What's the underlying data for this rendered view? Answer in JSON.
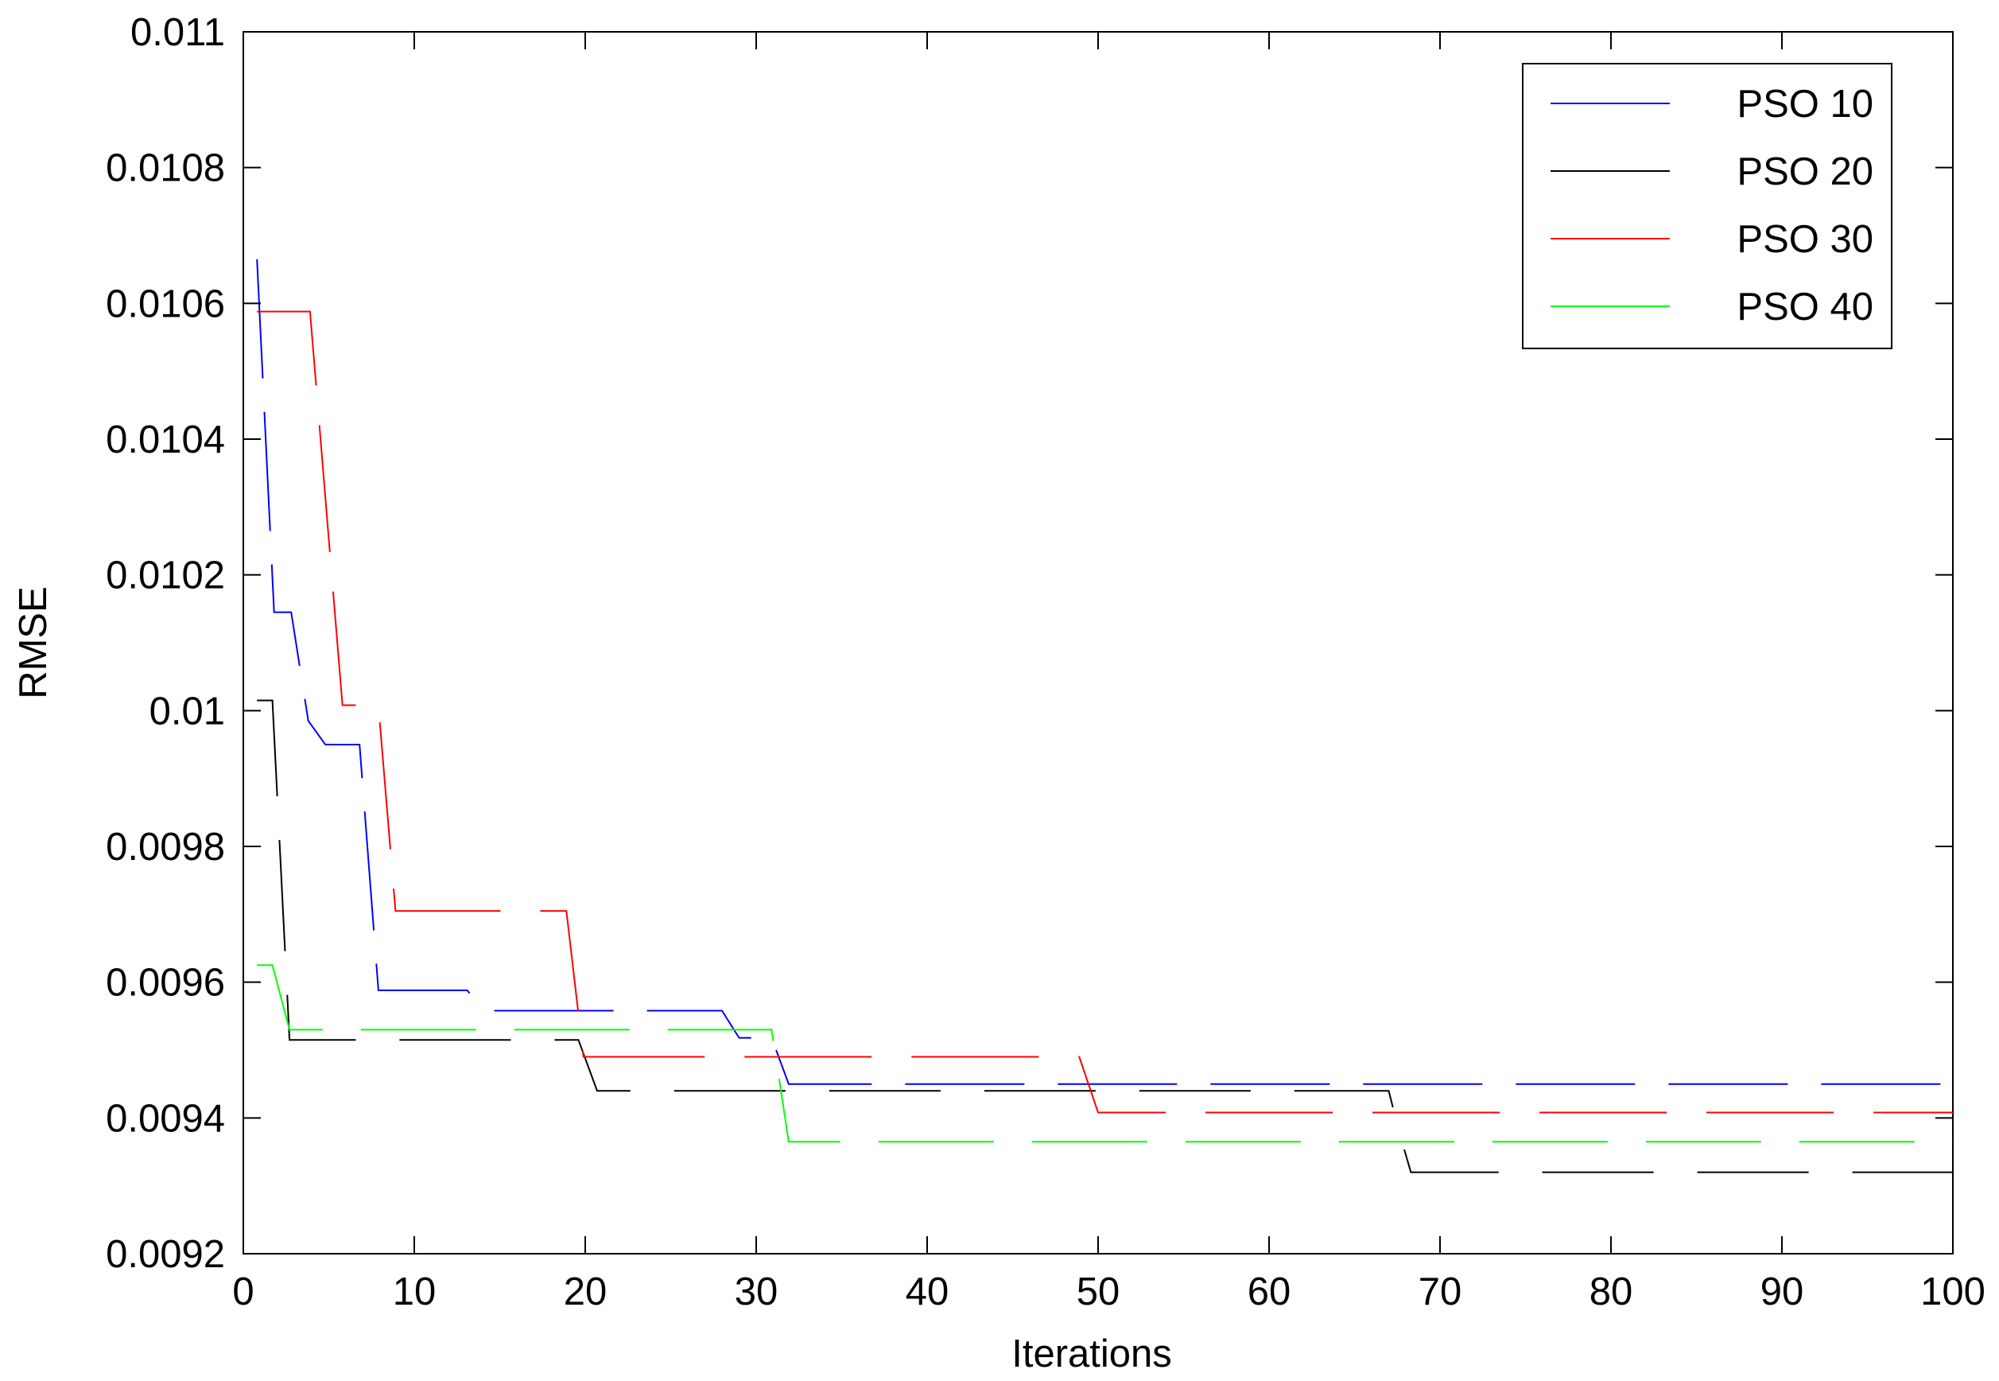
{
  "chart_data": {
    "type": "line",
    "xlabel": "Iterations",
    "ylabel": "RMSE",
    "xlim": [
      0,
      100
    ],
    "ylim": [
      0.0092,
      0.011
    ],
    "x_ticks": [
      0,
      10,
      20,
      30,
      40,
      50,
      60,
      70,
      80,
      90,
      100
    ],
    "x_tick_labels": [
      "0",
      "10",
      "20",
      "30",
      "40",
      "50",
      "60",
      "70",
      "80",
      "90",
      "100"
    ],
    "y_ticks": [
      0.0092,
      0.0094,
      0.0096,
      0.0098,
      0.01,
      0.0102,
      0.0104,
      0.0106,
      0.0108,
      0.011
    ],
    "y_tick_labels": [
      "0.0092",
      "0.0094",
      "0.0096",
      "0.0098",
      "0.01",
      "0.0102",
      "0.0104",
      "0.0106",
      "0.0108",
      "0.011"
    ],
    "grid": false,
    "legend_position": "top-right",
    "line_style": "dashed",
    "series": [
      {
        "name": "PSO 10",
        "color": "#0000ff",
        "points": [
          [
            0.8,
            0.010665
          ],
          [
            1.8,
            0.010145
          ],
          [
            2.8,
            0.010145
          ],
          [
            3.8,
            0.009985
          ],
          [
            4.8,
            0.00995
          ],
          [
            6.8,
            0.00995
          ],
          [
            7.9,
            0.009588
          ],
          [
            13.1,
            0.009588
          ],
          [
            14.0,
            0.009558
          ],
          [
            28.0,
            0.009558
          ],
          [
            29.0,
            0.009518
          ],
          [
            30.9,
            0.009518
          ],
          [
            31.9,
            0.00945
          ],
          [
            100,
            0.00945
          ]
        ]
      },
      {
        "name": "PSO 20",
        "color": "#000000",
        "points": [
          [
            0.8,
            0.010015
          ],
          [
            1.7,
            0.010015
          ],
          [
            2.7,
            0.009515
          ],
          [
            19.6,
            0.009515
          ],
          [
            20.7,
            0.00944
          ],
          [
            67.0,
            0.00944
          ],
          [
            67.6,
            0.00938
          ],
          [
            68.3,
            0.00932
          ],
          [
            100,
            0.00932
          ]
        ]
      },
      {
        "name": "PSO 30",
        "color": "#ff0000",
        "points": [
          [
            0.8,
            0.010588
          ],
          [
            3.9,
            0.010588
          ],
          [
            5.8,
            0.010008
          ],
          [
            7.9,
            0.010008
          ],
          [
            8.9,
            0.009705
          ],
          [
            18.9,
            0.009705
          ],
          [
            19.9,
            0.00949
          ],
          [
            48.9,
            0.00949
          ],
          [
            50.0,
            0.009408
          ],
          [
            100,
            0.009408
          ]
        ]
      },
      {
        "name": "PSO 40",
        "color": "#00ff00",
        "points": [
          [
            0.8,
            0.009625
          ],
          [
            1.7,
            0.009625
          ],
          [
            2.7,
            0.00953
          ],
          [
            30.9,
            0.00953
          ],
          [
            31.9,
            0.009365
          ],
          [
            100,
            0.009365
          ]
        ]
      }
    ]
  }
}
